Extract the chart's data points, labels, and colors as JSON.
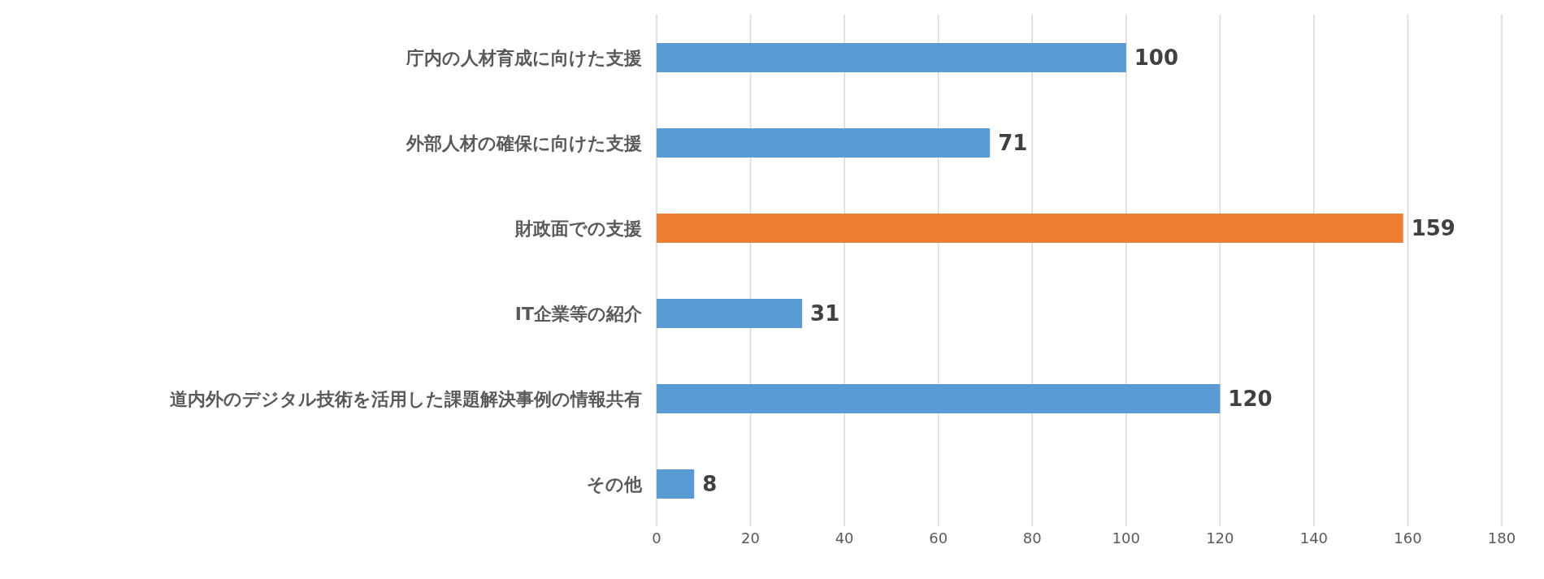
{
  "chart_data": {
    "type": "bar",
    "orientation": "horizontal",
    "categories": [
      "庁内の人材育成に向けた支援",
      "外部人材の確保に向けた支援",
      "財政面での支援",
      "IT企業等の紹介",
      "道内外のデジタル技術を活用した課題解決事例の情報共有",
      "その他"
    ],
    "values": [
      100,
      71,
      159,
      31,
      120,
      8
    ],
    "colors": [
      "#5b9bd5",
      "#5b9bd5",
      "#ed7d31",
      "#5b9bd5",
      "#5b9bd5",
      "#5b9bd5"
    ],
    "xlim": [
      0,
      180
    ],
    "xticks": [
      0,
      20,
      40,
      60,
      80,
      100,
      120,
      140,
      160,
      180
    ],
    "grid": "x",
    "data_labels": true
  }
}
